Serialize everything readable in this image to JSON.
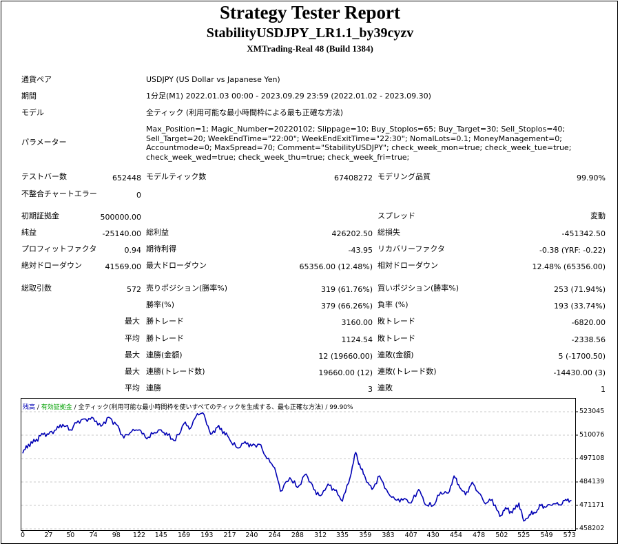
{
  "title": "Strategy Tester Report",
  "subtitle": "StabilityUSDJPY_LR1.1_by39cyzv",
  "server": "XMTrading-Real 48 (Build 1384)",
  "info": {
    "symbol_label": "通貨ペア",
    "symbol_value": "USDJPY (US Dollar vs Japanese Yen)",
    "period_label": "期間",
    "period_value": "1分足(M1) 2022.01.03 00:00 - 2023.09.29 23:59 (2022.01.02 - 2023.09.30)",
    "model_label": "モデル",
    "model_value": "全ティック (利用可能な最小時間枠による最も正確な方法)",
    "params_label": "パラメーター",
    "params_value": "Max_Position=1; Magic_Number=20220102; Slippage=10; Buy_Stoplos=65; Buy_Target=30; Sell_Stoplos=40; Sell_Target=20; WeekEndTime=\"22:00\"; WeekEndExitTime=\"22:30\"; NomalLots=0.1; MoneyManagement=0; Accountmode=0; MaxSpread=70; Comment=\"StabilityUSDJPY\"; check_week_mon=true; check_week_tue=true; check_week_wed=true; check_week_thu=true; check_week_fri=true;"
  },
  "stats": {
    "bars_label": "テストバー数",
    "bars_value": "652448",
    "ticks_label": "モデルティック数",
    "ticks_value": "67408272",
    "quality_label": "モデリング品質",
    "quality_value": "99.90%",
    "mismatch_label": "不整合チャートエラー",
    "mismatch_value": "0",
    "deposit_label": "初期証拠金",
    "deposit_value": "500000.00",
    "spread_label": "スプレッド",
    "spread_value": "変動",
    "net_label": "純益",
    "net_value": "-25140.00",
    "gross_profit_label": "総利益",
    "gross_profit_value": "426202.50",
    "gross_loss_label": "総損失",
    "gross_loss_value": "-451342.50",
    "pf_label": "プロフィットファクタ",
    "pf_value": "0.94",
    "expected_label": "期待利得",
    "expected_value": "-43.95",
    "recovery_label": "リカバリーファクタ",
    "recovery_value": "-0.38 (YRF: -0.22)",
    "abs_dd_label": "絶対ドローダウン",
    "abs_dd_value": "41569.00",
    "max_dd_label": "最大ドローダウン",
    "max_dd_value": "65356.00 (12.48%)",
    "rel_dd_label": "相対ドローダウン",
    "rel_dd_value": "12.48% (65356.00)",
    "total_trades_label": "総取引数",
    "total_trades_value": "572",
    "short_label": "売りポジション(勝率%)",
    "short_value": "319 (61.76%)",
    "long_label": "買いポジション(勝率%)",
    "long_value": "253 (71.94%)",
    "win_rate_label": "勝率(%)",
    "win_rate_value": "379 (66.26%)",
    "loss_rate_label": "負率 (%)",
    "loss_rate_value": "193 (33.74%)",
    "max_label_1": "最大",
    "largest_win_label": "勝トレード",
    "largest_win_value": "3160.00",
    "largest_loss_label": "敗トレード",
    "largest_loss_value": "-6820.00",
    "avg_label_1": "平均",
    "avg_win_label": "勝トレード",
    "avg_win_value": "1124.54",
    "avg_loss_label": "敗トレード",
    "avg_loss_value": "-2338.56",
    "max_label_2": "最大",
    "cons_wins_amt_label": "連勝(金額)",
    "cons_wins_amt_value": "12 (19660.00)",
    "cons_loss_amt_label": "連敗(金額)",
    "cons_loss_amt_value": "5 (-1700.50)",
    "max_label_3": "最大",
    "cons_wins_cnt_label": "連勝(トレード数)",
    "cons_wins_cnt_value": "19660.00 (12)",
    "cons_loss_cnt_label": "連敗(トレード数)",
    "cons_loss_cnt_value": "-14430.00 (3)",
    "avg_label_2": "平均",
    "avg_cons_wins_label": "連勝",
    "avg_cons_wins_value": "3",
    "avg_cons_loss_label": "連敗",
    "avg_cons_loss_value": "1"
  },
  "chart_legend": {
    "balance": "残高",
    "sep1": " / ",
    "equity": "有効証拠金",
    "rest": " / 全ティック(利用可能な最小時間枠を使いすべてのティックを生成する、最も正確な方法) / 99.90%"
  },
  "chart_data": {
    "type": "line",
    "series": [
      {
        "name": "残高",
        "color": "#0000b4",
        "points": [
          [
            0,
            500000
          ],
          [
            6,
            505000
          ],
          [
            13,
            506500
          ],
          [
            20,
            511000
          ],
          [
            27,
            510500
          ],
          [
            35,
            513000
          ],
          [
            42,
            516000
          ],
          [
            50,
            513000
          ],
          [
            58,
            518000
          ],
          [
            66,
            519000
          ],
          [
            74,
            519500
          ],
          [
            82,
            515000
          ],
          [
            90,
            520000
          ],
          [
            98,
            516000
          ],
          [
            106,
            508500
          ],
          [
            114,
            512000
          ],
          [
            122,
            513000
          ],
          [
            130,
            508000
          ],
          [
            138,
            511500
          ],
          [
            145,
            513000
          ],
          [
            152,
            510000
          ],
          [
            160,
            507000
          ],
          [
            169,
            516500
          ],
          [
            176,
            514000
          ],
          [
            183,
            522000
          ],
          [
            190,
            521500
          ],
          [
            197,
            510500
          ],
          [
            204,
            514500
          ],
          [
            211,
            512000
          ],
          [
            217,
            507500
          ],
          [
            225,
            503000
          ],
          [
            233,
            506500
          ],
          [
            240,
            504000
          ],
          [
            248,
            505000
          ],
          [
            256,
            497000
          ],
          [
            264,
            492000
          ],
          [
            270,
            479000
          ],
          [
            280,
            486500
          ],
          [
            288,
            481000
          ],
          [
            297,
            488500
          ],
          [
            305,
            480000
          ],
          [
            312,
            476500
          ],
          [
            320,
            483000
          ],
          [
            327,
            479500
          ],
          [
            335,
            473500
          ],
          [
            343,
            486500
          ],
          [
            349,
            500500
          ],
          [
            354,
            492000
          ],
          [
            359,
            486500
          ],
          [
            366,
            480000
          ],
          [
            374,
            487500
          ],
          [
            383,
            478000
          ],
          [
            392,
            474000
          ],
          [
            400,
            475000
          ],
          [
            407,
            472500
          ],
          [
            415,
            480000
          ],
          [
            422,
            471500
          ],
          [
            430,
            471000
          ],
          [
            438,
            478500
          ],
          [
            446,
            478000
          ],
          [
            452,
            487500
          ],
          [
            458,
            481000
          ],
          [
            464,
            477000
          ],
          [
            471,
            484000
          ],
          [
            478,
            478000
          ],
          [
            485,
            472000
          ],
          [
            492,
            474500
          ],
          [
            500,
            465000
          ],
          [
            506,
            470000
          ],
          [
            513,
            467000
          ],
          [
            520,
            472500
          ],
          [
            525,
            462500
          ],
          [
            531,
            466000
          ],
          [
            537,
            467000
          ],
          [
            543,
            471000
          ],
          [
            549,
            470500
          ],
          [
            556,
            472000
          ],
          [
            563,
            471500
          ],
          [
            569,
            474500
          ],
          [
            575,
            474000
          ]
        ]
      }
    ],
    "x_ticks": [
      "0",
      "27",
      "50",
      "74",
      "98",
      "122",
      "145",
      "169",
      "193",
      "217",
      "240",
      "264",
      "288",
      "312",
      "335",
      "359",
      "383",
      "407",
      "430",
      "454",
      "478",
      "502",
      "525",
      "549",
      "573"
    ],
    "y_ticks": [
      "523045",
      "510076",
      "497108",
      "484139",
      "471171",
      "458202"
    ],
    "xlim": [
      0,
      579
    ],
    "ylim": [
      458202,
      529529
    ],
    "grid": true
  }
}
